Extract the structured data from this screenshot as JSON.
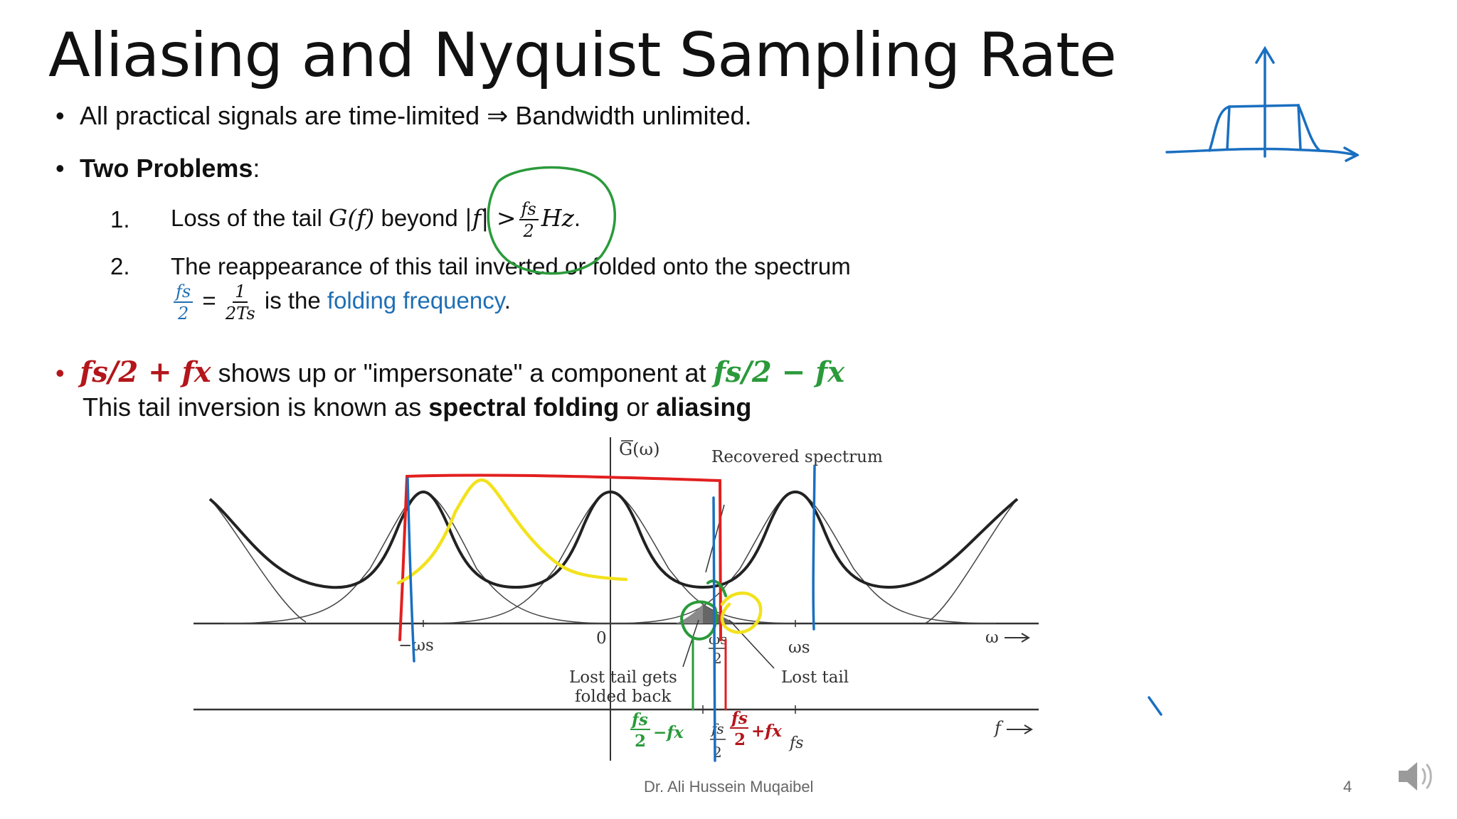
{
  "slide": {
    "title": "Aliasing and Nyquist Sampling Rate",
    "bullet1": "All practical signals are time-limited ⇒ Bandwidth unlimited.",
    "bullet2_strong": "Two Problems",
    "bullet2_colon": ":",
    "item1": {
      "num": "1.",
      "text_before": "Loss of the tail",
      "G": "G(f)",
      "beyond": "beyond",
      "abs": "|f| >",
      "frac_n": "fs",
      "frac_d": "2",
      "unit": "Hz",
      "period": "."
    },
    "item2": {
      "num": "2.",
      "line1": "The reappearance of this tail inverted or folded onto the spectrum",
      "f1_n": "fs",
      "f1_d": "2",
      "eq": "=",
      "f2_n": "1",
      "f2_d": "2Ts",
      "is_the": "is the",
      "folding": "folding frequency",
      "period": "."
    },
    "bullet3": {
      "red_math": "fs/2 + fx",
      "middle": "shows up or \"impersonate\" a component at",
      "green_math": "fs/2 − fx",
      "line2_a": "This tail inversion is known as",
      "line2_b": "spectral folding",
      "line2_c": "or",
      "line2_d": "aliasing"
    },
    "figure": {
      "y_axis_label": "G(ω)",
      "recovered": "Recovered spectrum",
      "neg_ws": "−ωs",
      "zero": "0",
      "ws2_n": "ωs",
      "ws2_d": "2",
      "ws": "ωs",
      "omega": "ω",
      "lost_folded_1": "Lost tail gets",
      "lost_folded_2": "folded back",
      "lost_tail": "Lost tail",
      "f_axis": "f",
      "fs_half_n": "fs",
      "fs_half_d": "2",
      "fs": "fs",
      "ann_green_n": "fs",
      "ann_green_d": "2",
      "ann_green_rest": "−fx",
      "ann_red_n": "fs",
      "ann_red_d": "2",
      "ann_red_rest": "+fx"
    },
    "footer": "Dr. Ali Hussein Muqaibel",
    "page_number": "4"
  },
  "colors": {
    "red": "#b3161b",
    "green": "#2a9a3a",
    "blue": "#1f6fb5",
    "yellow": "#f2e21c",
    "ink_blue": "#1a6fc0"
  },
  "icons": [
    "speaker-icon"
  ]
}
